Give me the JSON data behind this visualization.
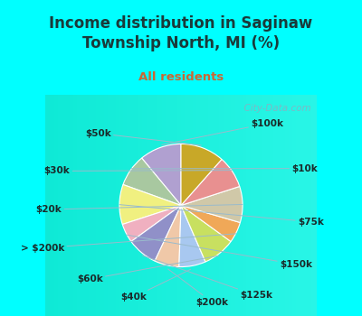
{
  "title": "Income distribution in Saginaw\nTownship North, MI (%)",
  "subtitle": "All residents",
  "title_color": "#1a3a3a",
  "subtitle_color": "#cc6633",
  "background_top": "#00ffff",
  "background_chart_color": "#d0ede0",
  "labels": [
    "$100k",
    "$10k",
    "$75k",
    "$150k",
    "$125k",
    "$200k",
    "$40k",
    "$60k",
    "> $200k",
    "$20k",
    "$30k",
    "$50k"
  ],
  "values": [
    11.0,
    8.5,
    10.5,
    5.0,
    8.0,
    6.5,
    7.0,
    8.5,
    5.5,
    9.5,
    8.5,
    11.5
  ],
  "colors": [
    "#b0a0d0",
    "#a8c8a0",
    "#f0f080",
    "#f0b0c0",
    "#9090c8",
    "#f0c8a8",
    "#a8c8f0",
    "#c8e060",
    "#f0a858",
    "#d0c8a8",
    "#e89090",
    "#c8a828"
  ],
  "startangle": 90,
  "watermark": "  City-Data.com"
}
